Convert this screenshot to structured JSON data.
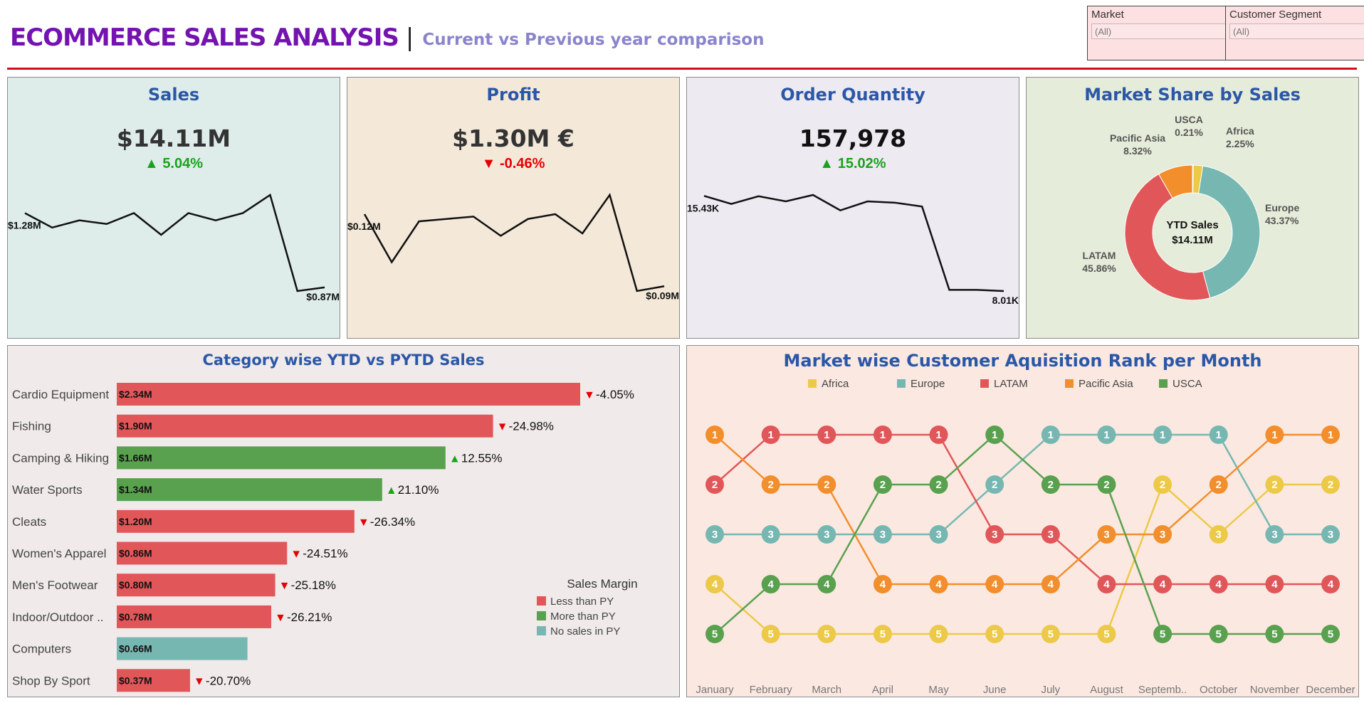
{
  "header": {
    "title": "ECOMMERCE SALES ANALYSIS",
    "separator": "|",
    "subtitle": "Current vs Previous year comparison"
  },
  "filters": [
    {
      "label": "Market",
      "value": "(All)"
    },
    {
      "label": "Customer Segment",
      "value": "(All)"
    }
  ],
  "kpis": [
    {
      "title": "Sales",
      "value": "$14.11M",
      "direction": "up",
      "arrow": "▲",
      "change": "5.04%",
      "spark": [
        1.28,
        1.2,
        1.24,
        1.22,
        1.28,
        1.16,
        1.28,
        1.24,
        1.28,
        1.38,
        0.85,
        0.87
      ],
      "start_label": "$1.28M",
      "end_label": "$0.87M",
      "bg": "#deedea"
    },
    {
      "title": "Profit",
      "value": "$1.30M €",
      "direction": "down",
      "arrow": "▼",
      "change": "-0.46%",
      "spark": [
        0.12,
        0.1,
        0.117,
        0.118,
        0.119,
        0.111,
        0.118,
        0.12,
        0.112,
        0.128,
        0.088,
        0.09
      ],
      "start_label": "$0.12M",
      "end_label": "$0.09M",
      "bg": "#f4e9d9"
    },
    {
      "title": "Order Quantity",
      "value": "157,978",
      "direction": "up",
      "arrow": "▲",
      "change": "15.02%",
      "spark": [
        15.43,
        14.8,
        15.4,
        15.0,
        15.5,
        14.3,
        15.0,
        14.9,
        14.6,
        8.1,
        8.1,
        8.01
      ],
      "start_label": "15.43K",
      "end_label": "8.01K",
      "bg": "#eeeaf2"
    }
  ],
  "market_share": {
    "title": "Market Share by Sales",
    "center_label": "YTD Sales",
    "center_value": "$14.11M",
    "slices": [
      {
        "name": "USCA",
        "pct": 0.21,
        "label": "0.21%",
        "color": "#59a14f"
      },
      {
        "name": "Africa",
        "pct": 2.25,
        "label": "2.25%",
        "color": "#edc948"
      },
      {
        "name": "Europe",
        "pct": 43.37,
        "label": "43.37%",
        "color": "#76b7b2"
      },
      {
        "name": "LATAM",
        "pct": 45.86,
        "label": "45.86%",
        "color": "#e15759"
      },
      {
        "name": "Pacific Asia",
        "pct": 8.32,
        "label": "8.32%",
        "color": "#f28e2b"
      }
    ]
  },
  "chart_data": [
    {
      "type": "bar",
      "title": "Category wise YTD vs PYTD Sales",
      "categories": [
        "Cardio Equipment",
        "Fishing",
        "Camping & Hiking",
        "Water Sports",
        "Cleats",
        "Women's Apparel",
        "Men's Footwear",
        "Indoor/Outdoor ..",
        "Computers",
        "Shop By Sport"
      ],
      "values": [
        2.34,
        1.9,
        1.66,
        1.34,
        1.2,
        0.86,
        0.8,
        0.78,
        0.66,
        0.37
      ],
      "value_labels": [
        "$2.34M",
        "$1.90M",
        "$1.66M",
        "$1.34M",
        "$1.20M",
        "$0.86M",
        "$0.80M",
        "$0.78M",
        "$0.66M",
        "$0.37M"
      ],
      "changes": [
        "-4.05%",
        "-24.98%",
        "12.55%",
        "21.10%",
        "-26.34%",
        "-24.51%",
        "-25.18%",
        "-26.21%",
        "",
        "-20.70%"
      ],
      "margin_class": [
        "less",
        "less",
        "more",
        "more",
        "less",
        "less",
        "less",
        "less",
        "none",
        "less"
      ],
      "legend": {
        "title": "Sales Margin",
        "items": [
          {
            "key": "less",
            "label": "Less than PY",
            "color": "#e15759"
          },
          {
            "key": "more",
            "label": "More than PY",
            "color": "#59a14f"
          },
          {
            "key": "none",
            "label": "No sales in PY",
            "color": "#76b7b2"
          }
        ]
      },
      "arrows": {
        "up": "▲",
        "down": "▼",
        "up_color": "#1aa31a",
        "down_color": "#e60000"
      }
    },
    {
      "type": "line",
      "title": "Market wise Customer Aquisition Rank per Month",
      "x": [
        "January",
        "February",
        "March",
        "April",
        "May",
        "June",
        "July",
        "August",
        "Septemb..",
        "October",
        "November",
        "December"
      ],
      "ylim": [
        1,
        5
      ],
      "series": [
        {
          "name": "Africa",
          "color": "#edc948",
          "values": [
            4,
            5,
            5,
            5,
            5,
            5,
            5,
            5,
            2,
            3,
            2,
            2
          ]
        },
        {
          "name": "Europe",
          "color": "#76b7b2",
          "values": [
            3,
            3,
            3,
            3,
            3,
            2,
            1,
            1,
            1,
            1,
            3,
            3
          ]
        },
        {
          "name": "LATAM",
          "color": "#e15759",
          "values": [
            2,
            1,
            1,
            1,
            1,
            3,
            3,
            4,
            4,
            4,
            4,
            4
          ]
        },
        {
          "name": "Pacific Asia",
          "color": "#f28e2b",
          "values": [
            1,
            2,
            2,
            4,
            4,
            4,
            4,
            3,
            3,
            2,
            1,
            1
          ]
        },
        {
          "name": "USCA",
          "color": "#59a14f",
          "values": [
            5,
            4,
            4,
            2,
            2,
            1,
            2,
            2,
            5,
            5,
            5,
            5
          ]
        }
      ]
    }
  ]
}
